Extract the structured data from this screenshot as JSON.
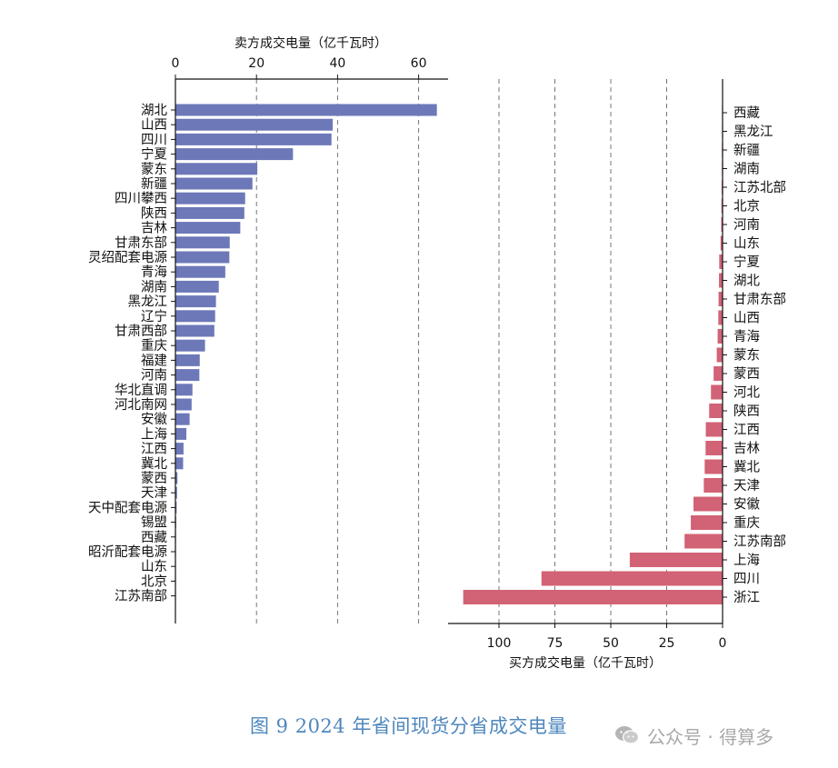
{
  "chart_data": [
    {
      "type": "bar",
      "orientation": "horizontal",
      "xlabel": "卖方成交电量（亿千瓦时）",
      "xlim": [
        0,
        68
      ],
      "xticks": [
        0,
        20,
        40,
        60
      ],
      "grid": "vertical dashed",
      "bar_color": "#6c78b8",
      "categories": [
        "湖北",
        "山西",
        "四川",
        "宁夏",
        "蒙东",
        "新疆",
        "四川攀西",
        "陕西",
        "吉林",
        "甘肃东部",
        "灵绍配套电源",
        "青海",
        "湖南",
        "黑龙江",
        "辽宁",
        "甘肃西部",
        "重庆",
        "福建",
        "河南",
        "华北直调",
        "河北南网",
        "安徽",
        "上海",
        "江西",
        "冀北",
        "蒙西",
        "天津",
        "天中配套电源",
        "锡盟",
        "西藏",
        "昭沂配套电源",
        "山东",
        "北京",
        "江苏南部"
      ],
      "values": [
        64.5,
        38.8,
        38.5,
        29,
        20.2,
        19,
        17.2,
        17,
        16,
        13.4,
        13.3,
        12.3,
        10.7,
        10,
        9.8,
        9.6,
        7.3,
        6,
        5.9,
        4.2,
        4,
        3.5,
        2.7,
        2,
        1.9,
        0.5,
        0.4,
        0.3,
        0.2,
        0.15,
        0.1,
        0.05,
        0.05,
        0.05
      ]
    },
    {
      "type": "bar",
      "orientation": "horizontal",
      "xlabel": "买方成交电量（亿千瓦时）",
      "xlim": [
        0,
        122
      ],
      "x_axis_reversed": true,
      "xticks": [
        100,
        75,
        50,
        25,
        0
      ],
      "grid": "vertical dashed",
      "bar_color": "#d26275",
      "categories": [
        "西藏",
        "黑龙江",
        "新疆",
        "湖南",
        "江苏北部",
        "北京",
        "河南",
        "山东",
        "宁夏",
        "湖北",
        "甘肃东部",
        "山西",
        "青海",
        "蒙东",
        "蒙西",
        "河北",
        "陕西",
        "江西",
        "吉林",
        "冀北",
        "天津",
        "安徽",
        "重庆",
        "江苏南部",
        "上海",
        "四川",
        "浙江"
      ],
      "values": [
        0.1,
        0.2,
        0.3,
        0.3,
        0.4,
        0.5,
        0.6,
        0.9,
        1.5,
        1.6,
        1.8,
        1.9,
        2.2,
        2.6,
        4,
        5.2,
        6,
        7.5,
        7.6,
        8,
        8.4,
        13,
        14.2,
        17,
        41.5,
        81,
        116
      ]
    }
  ],
  "caption": "图 9    2024 年省间现货分省成交电量",
  "watermark": {
    "icon": "wechat-icon",
    "text": "公众号 · 得算多"
  }
}
